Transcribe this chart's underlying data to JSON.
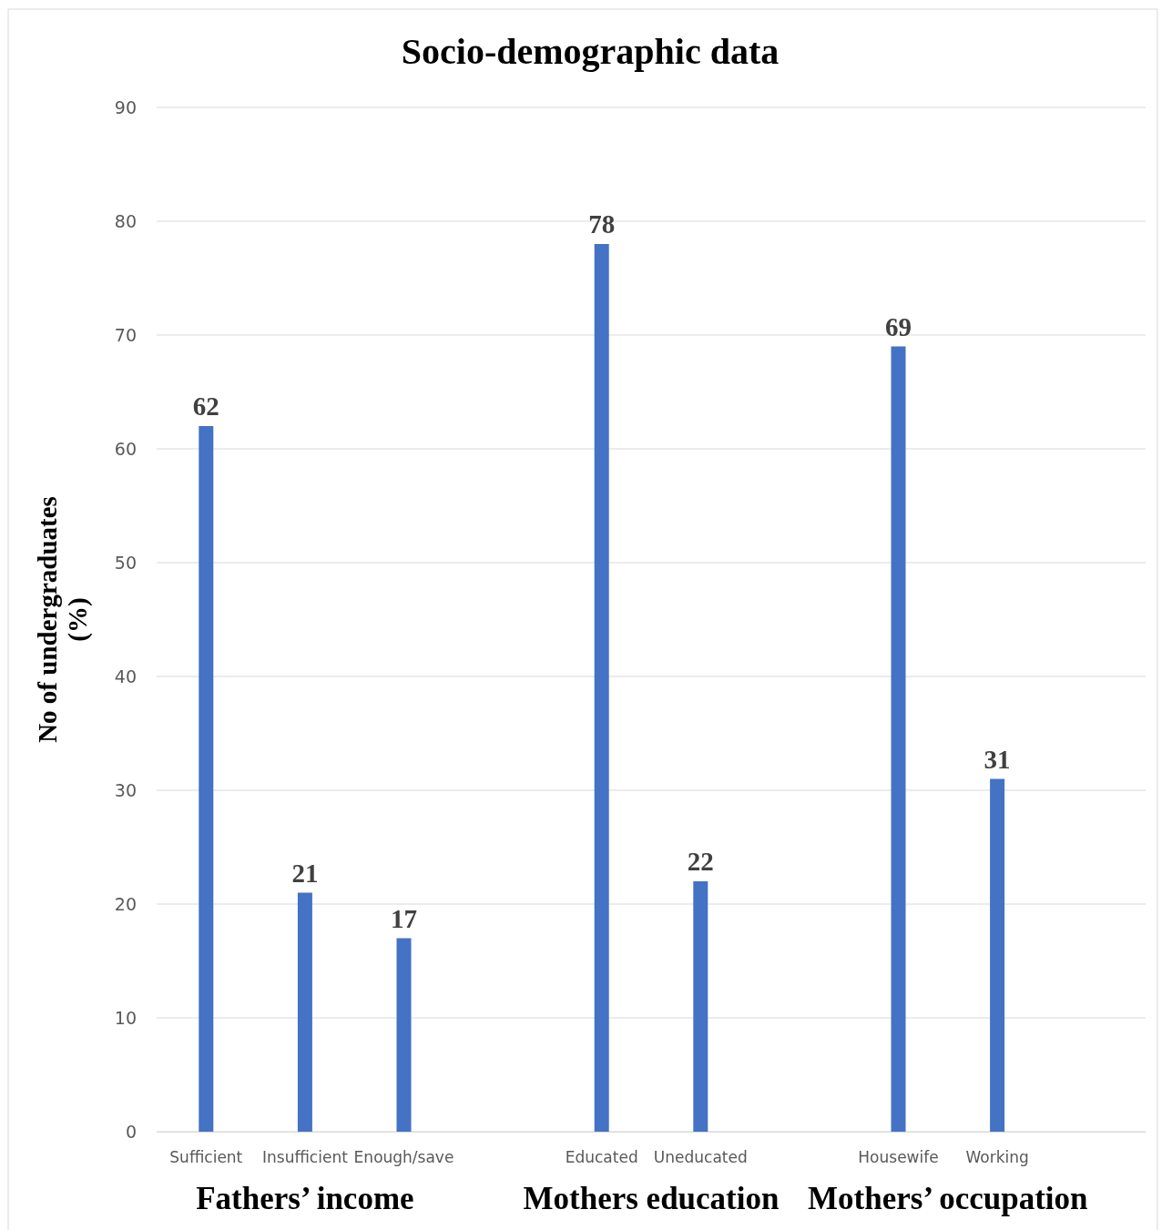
{
  "chart_data": {
    "type": "bar",
    "title": "Socio-demographic data",
    "ylabel": "No of undergraduates (%)",
    "categories": [
      "Sufficient",
      "Insufficient",
      "Enough/save",
      null,
      "Educated",
      "Uneducated",
      null,
      "Housewife",
      "Working",
      null
    ],
    "values": [
      62,
      21,
      17,
      null,
      78,
      22,
      null,
      69,
      31,
      null
    ],
    "color": "#4472c4",
    "ylim": [
      0,
      90
    ],
    "yticks": [
      0,
      10,
      20,
      30,
      40,
      50,
      60,
      70,
      80,
      90
    ],
    "grid": "y",
    "data_labels": true,
    "annotations": [
      "Fathers’ income",
      "Mothers education",
      "Mothers’ occupation"
    ]
  }
}
